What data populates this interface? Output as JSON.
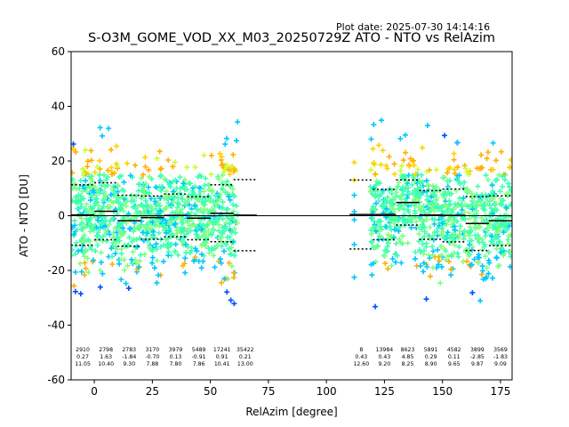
{
  "plot_date": "Plot date: 2025-07-30 14:14:16",
  "chart_data": {
    "type": "scatter",
    "title": "S-O3M_GOME_VOD_XX_M03_20250729Z ATO - NTO vs RelAzim",
    "xlabel": "RelAzim [degree]",
    "ylabel": "ATO - NTO [DU]",
    "xlim": [
      -10,
      180
    ],
    "ylim": [
      -60,
      60
    ],
    "xticks": [
      0,
      25,
      50,
      75,
      100,
      125,
      150,
      175
    ],
    "yticks": [
      -60,
      -40,
      -20,
      0,
      20,
      40,
      60
    ],
    "grid": false,
    "colors": [
      "#0050ff",
      "#00c8ff",
      "#40ffb0",
      "#80ff80",
      "#c8ff30",
      "#ffd200",
      "#ffb000"
    ],
    "zero_line": 0,
    "bins": [
      {
        "xmin": -10,
        "xmax": 0,
        "count": "2910",
        "mean": "0.27",
        "std": "11.05",
        "mean_v": 0.27,
        "std_v": 11.05
      },
      {
        "xmin": 0,
        "xmax": 10,
        "count": "2798",
        "mean": "1.63",
        "std": "10.40",
        "mean_v": 1.63,
        "std_v": 10.4
      },
      {
        "xmin": 10,
        "xmax": 20,
        "count": "2783",
        "mean": "-1.84",
        "std": "9.30",
        "mean_v": -1.84,
        "std_v": 9.3
      },
      {
        "xmin": 20,
        "xmax": 30,
        "count": "3170",
        "mean": "-0.70",
        "std": "7.88",
        "mean_v": -0.7,
        "std_v": 7.88
      },
      {
        "xmin": 30,
        "xmax": 40,
        "count": "3979",
        "mean": "0.13",
        "std": "7.80",
        "mean_v": 0.13,
        "std_v": 7.8
      },
      {
        "xmin": 40,
        "xmax": 50,
        "count": "5489",
        "mean": "-0.91",
        "std": "7.86",
        "mean_v": -0.91,
        "std_v": 7.86
      },
      {
        "xmin": 50,
        "xmax": 60,
        "count": "17241",
        "mean": "0.91",
        "std": "10.41",
        "mean_v": 0.91,
        "std_v": 10.41
      },
      {
        "xmin": 60,
        "xmax": 70,
        "count": "35422",
        "mean": "0.21",
        "std": "13.00",
        "mean_v": 0.21,
        "std_v": 13.0
      },
      {
        "xmin": 110,
        "xmax": 120,
        "count": "8",
        "mean": "0.43",
        "std": "12.60",
        "mean_v": 0.43,
        "std_v": 12.6
      },
      {
        "xmin": 120,
        "xmax": 130,
        "count": "13984",
        "mean": "0.43",
        "std": "9.20",
        "mean_v": 0.43,
        "std_v": 9.2
      },
      {
        "xmin": 130,
        "xmax": 140,
        "count": "8623",
        "mean": "4.85",
        "std": "8.25",
        "mean_v": 4.85,
        "std_v": 8.25
      },
      {
        "xmin": 140,
        "xmax": 150,
        "count": "5891",
        "mean": "0.29",
        "std": "8.90",
        "mean_v": 0.29,
        "std_v": 8.9
      },
      {
        "xmin": 150,
        "xmax": 160,
        "count": "4582",
        "mean": "0.11",
        "std": "9.65",
        "mean_v": 0.11,
        "std_v": 9.65
      },
      {
        "xmin": 160,
        "xmax": 170,
        "count": "3899",
        "mean": "-2.85",
        "std": "9.87",
        "mean_v": -2.85,
        "std_v": 9.87
      },
      {
        "xmin": 170,
        "xmax": 180,
        "count": "3569",
        "mean": "-1.83",
        "std": "9.09",
        "mean_v": -1.83,
        "std_v": 9.09
      }
    ]
  }
}
